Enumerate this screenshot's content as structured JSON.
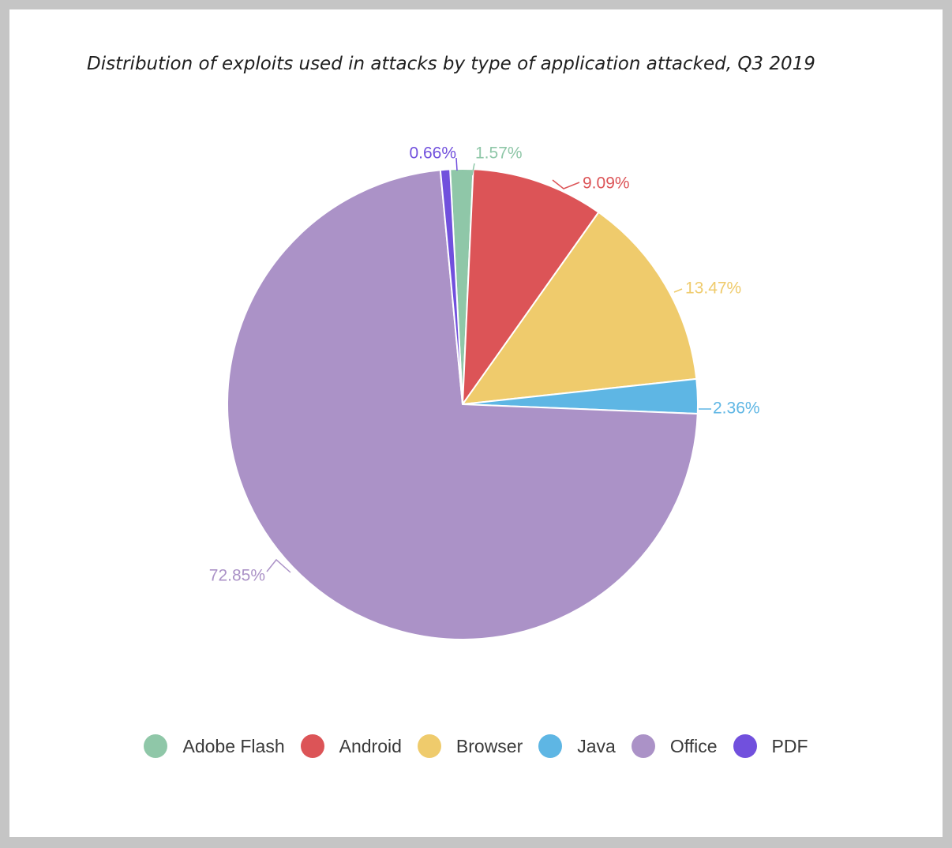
{
  "chart_data": {
    "type": "pie",
    "title": "Distribution of exploits used in attacks by type of application attacked, Q3 2019",
    "categories": [
      "Adobe Flash",
      "Android",
      "Browser",
      "Java",
      "Office",
      "PDF"
    ],
    "values": [
      1.57,
      9.09,
      13.47,
      2.36,
      72.85,
      0.66
    ],
    "data_labels": [
      "1.57%",
      "9.09%",
      "13.47%",
      "2.36%",
      "72.85%",
      "0.66%"
    ],
    "colors": [
      "#8fc7a8",
      "#dc5457",
      "#efcb6c",
      "#5eb6e4",
      "#ab92c7",
      "#7150dd"
    ],
    "legend_position": "bottom"
  }
}
